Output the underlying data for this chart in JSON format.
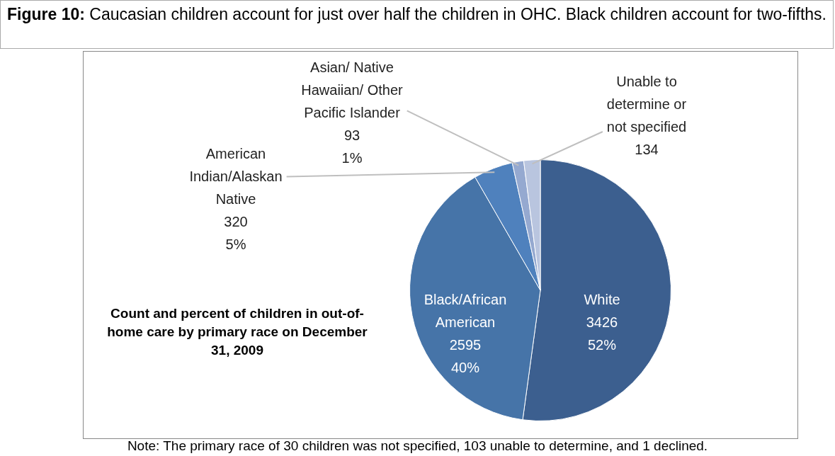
{
  "chart_data": {
    "type": "pie",
    "title": "Figure 10:  Caucasian children account for just over half the children in OHC.  Black children account for two-fifths.",
    "categories": [
      "White",
      "Black/African American",
      "American Indian/Alaskan Native",
      "Asian/ Native Hawaiian/ Other Pacific Islander",
      "Unable to determine or not specified"
    ],
    "values": [
      3426,
      2595,
      320,
      93,
      134
    ],
    "colors": [
      "#3c5f8f",
      "#4674a8",
      "#4f81bd",
      "#95a9d0",
      "#b9c5df"
    ],
    "value_labels": [
      "3426\n52%",
      "2595\n40%",
      "320\n5%",
      "93\n1%",
      "134"
    ],
    "legend": false,
    "annotations": [
      "Count and percent of children in out-of-home care by primary race on December 31, 2009",
      "Note:  The primary race of 30 children was not specified, 103 unable to determine, and 1 declined."
    ]
  }
}
